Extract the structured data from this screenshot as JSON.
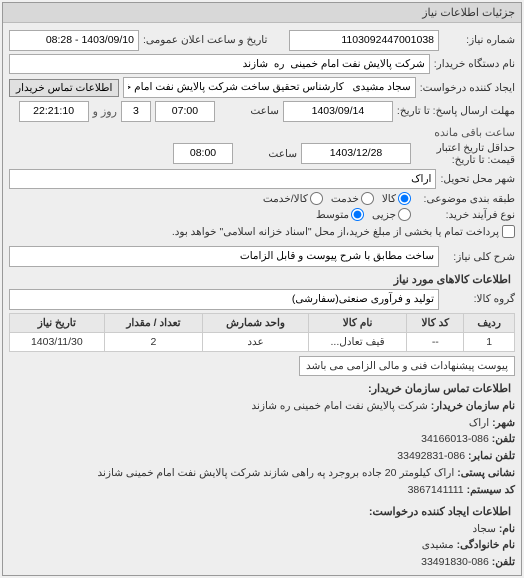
{
  "panel": {
    "title": "جزئیات اطلاعات نیاز"
  },
  "general": {
    "request_no_label": "شماره نیاز:",
    "request_no": "1103092447001038",
    "announce_date_label": "تاریخ و ساعت اعلان عمومی:",
    "announce_date": "1403/09/10 - 08:28",
    "buyer_device_label": "نام دستگاه خریدار:",
    "buyer_device": "شرکت پالایش نفت امام خمینی  ره  شازند",
    "creator_label": "ایجاد کننده درخواست:",
    "creator": "سجاد مشیدی   کارشناس تحقیق ساخت شرکت پالایش نفت امام خمینی  ره",
    "contact_btn": "اطلاعات تماس خریدار",
    "deadline_label": "مهلت ارسال پاسخ: تا تاریخ:",
    "deadline_date": "1403/09/14",
    "deadline_time_label": "ساعت",
    "deadline_time": "07:00",
    "days_remaining": "3",
    "days_label": "روز و",
    "time_remaining": "22:21:10",
    "remaining_label": "ساعت باقی مانده",
    "validity_label": "حداقل تاریخ اعتبار",
    "validity_sub": "قیمت: تا تاریخ:",
    "validity_date": "1403/12/28",
    "validity_time_label": "ساعت",
    "validity_time": "08:00",
    "delivery_city_label": "شهر محل تحویل:",
    "delivery_city": "اراک",
    "classify_label": "طبقه بندی موضوعی:",
    "classify_value": "کالا",
    "classify_opts": {
      "goods": "کالا",
      "service": "خدمت",
      "goods_service": "کالا/خدمت"
    },
    "purchase_type_label": "نوع فرآیند خرید:",
    "purchase_opts": {
      "small": "جزیی",
      "medium": "متوسط"
    },
    "purchase_value": "متوسط",
    "purchase_note": "پرداخت تمام یا بخشی از مبلغ خرید،از محل \"اسناد خزانه اسلامی\" خواهد بود.",
    "summary_label": "شرح کلی نیاز:",
    "summary": "ساخت مطابق با شرح پیوست و قابل الزامات"
  },
  "items": {
    "section_title": "اطلاعات کالاهای مورد نیاز",
    "group_label": "گروه کالا:",
    "group": "تولید و فرآوری صنعتی(سفارشی)",
    "table": {
      "columns": [
        "ردیف",
        "کد کالا",
        "نام کالا",
        "واحد شمارش",
        "تعداد / مقدار",
        "تاریخ نیاز"
      ],
      "rows": [
        [
          "1",
          "--",
          "قیف تعادل...",
          "عدد",
          "2",
          "1403/11/30"
        ]
      ]
    },
    "attach_note": "پیوست پیشنهادات فنی و مالی الزامی می باشد"
  },
  "contact": {
    "header": "اطلاعات تماس سازمان خریدار:",
    "org_label": "نام سازمان خریدار:",
    "org": "شرکت پالایش نفت امام خمینی ره شازند",
    "city_label": "شهر:",
    "city": "اراک",
    "phone_label": "تلفن:",
    "phone": "086-34166013",
    "fax_label": "تلفن نمابر:",
    "fax": "086-33492831",
    "addr_label": "نشانی پستی:",
    "addr": "اراک کیلومتر 20 جاده بروجرد په راهی شازند شرکت پالایش نفت امام خمینی شازند",
    "sys_code_label": "کد سیستم:",
    "sys_code": "3867141111",
    "creator_header": "اطلاعات ایجاد کننده درخواست:",
    "name_label": "نام:",
    "name": "سجاد",
    "lname_label": "نام خانوادگی:",
    "lname": "مشیدی",
    "cphone_label": "تلفن:",
    "cphone": "086-33491830"
  }
}
